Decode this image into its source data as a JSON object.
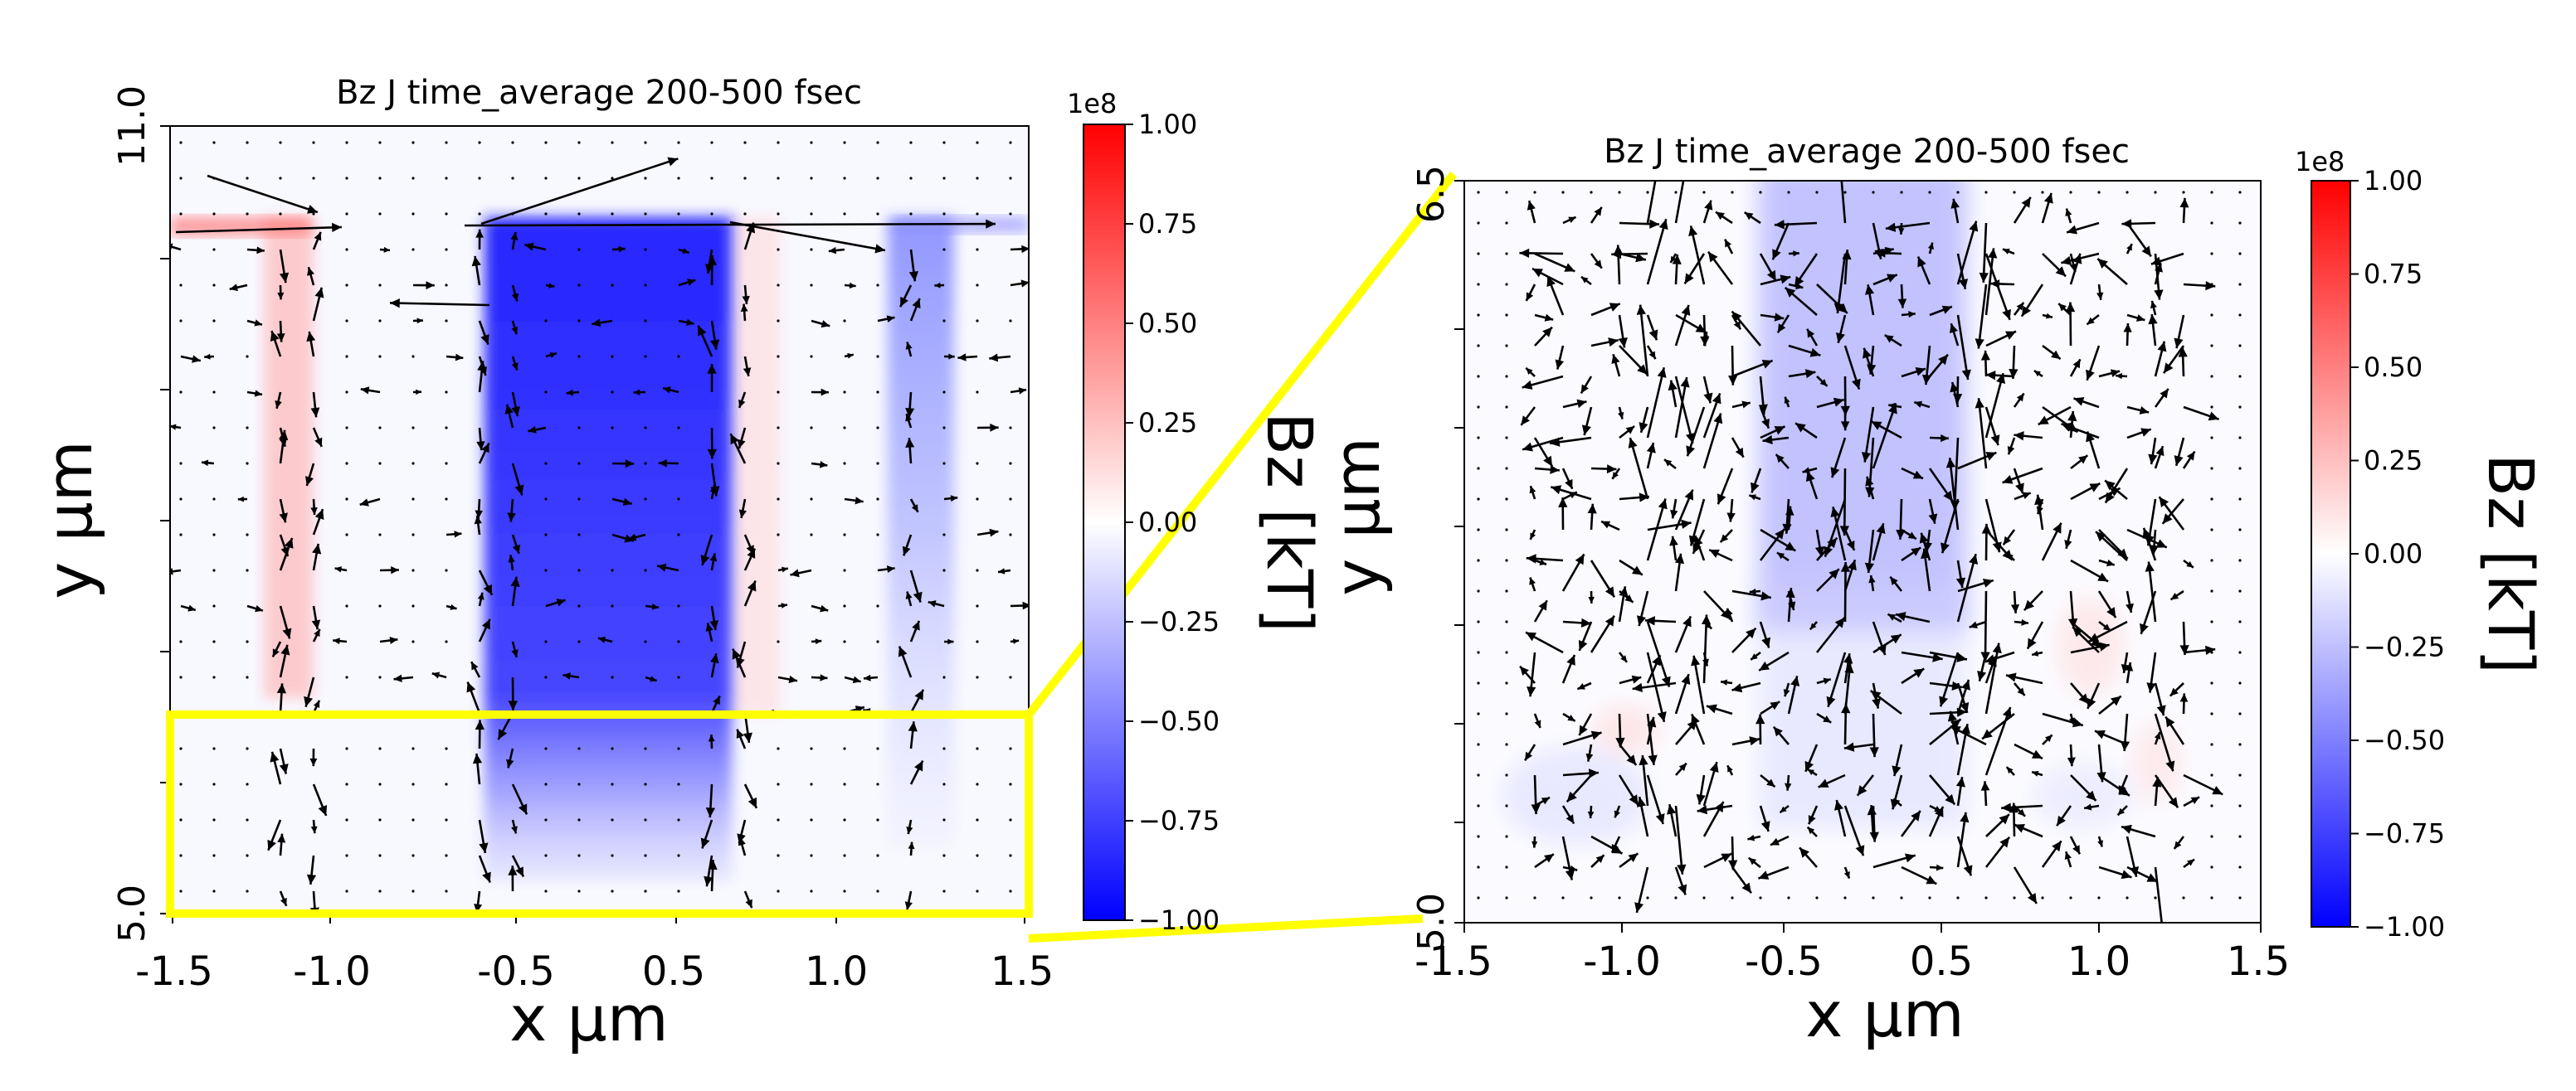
{
  "chart_data": [
    {
      "type": "heatmap",
      "title": "Bz J time_average 200-500 fsec",
      "xlabel": "x μm",
      "ylabel": "y μm",
      "x_tick_labels": [
        "-1.5",
        "-1.0",
        "-0.5",
        "0.5",
        "1.0",
        "1.5"
      ],
      "y_tick_labels": [
        "5.0",
        "11.0"
      ],
      "xlim": [
        -1.5,
        1.5
      ],
      "ylim": [
        5.0,
        11.0
      ],
      "overlay": "quiver (current density J)",
      "colorbar": {
        "label": "Bz [kT]",
        "multiplier": "1e8",
        "range": [
          -1.0,
          1.0
        ],
        "tick_labels": [
          "1.00",
          "0.75",
          "0.50",
          "0.25",
          "0.00",
          "−0.25",
          "−0.50",
          "−0.75",
          "−1.00"
        ],
        "colormap": "bwr"
      },
      "features": [
        {
          "type": "band",
          "x_range": [
            -0.6,
            0.5
          ],
          "value": -0.85
        },
        {
          "type": "band",
          "x_range": [
            -1.25,
            -1.05
          ],
          "value": 0.2
        },
        {
          "type": "band",
          "x_range": [
            1.05,
            1.25
          ],
          "value": -0.2
        }
      ],
      "zoom_box": {
        "x_range": [
          -1.5,
          1.5
        ],
        "y_range": [
          5.0,
          6.5
        ],
        "color": "#ffff00"
      }
    },
    {
      "type": "heatmap",
      "title": "Bz J time_average 200-500 fsec",
      "xlabel": "x μm",
      "ylabel": "y μm",
      "x_tick_labels": [
        "-1.5",
        "-1.0",
        "-0.5",
        "0.5",
        "1.0",
        "1.5"
      ],
      "y_tick_labels": [
        "5.0",
        "6.5"
      ],
      "xlim": [
        -1.5,
        1.5
      ],
      "ylim": [
        5.0,
        6.5
      ],
      "overlay": "quiver (current density J)",
      "colorbar": {
        "label": "Bz [kT]",
        "multiplier": "1e8",
        "range": [
          -1.0,
          1.0
        ],
        "tick_labels": [
          "1.00",
          "0.75",
          "0.50",
          "0.25",
          "0.00",
          "−0.25",
          "−0.50",
          "−0.75",
          "−1.00"
        ],
        "colormap": "bwr"
      },
      "features": [
        {
          "type": "band",
          "x_range": [
            -0.6,
            0.5
          ],
          "value": -0.3
        }
      ]
    }
  ],
  "colors": {
    "cmap_max": "#ff0000",
    "cmap_mid": "#ffffff",
    "cmap_min": "#0000ff",
    "zoom_highlight": "#ffff00",
    "arrow": "#000000"
  }
}
